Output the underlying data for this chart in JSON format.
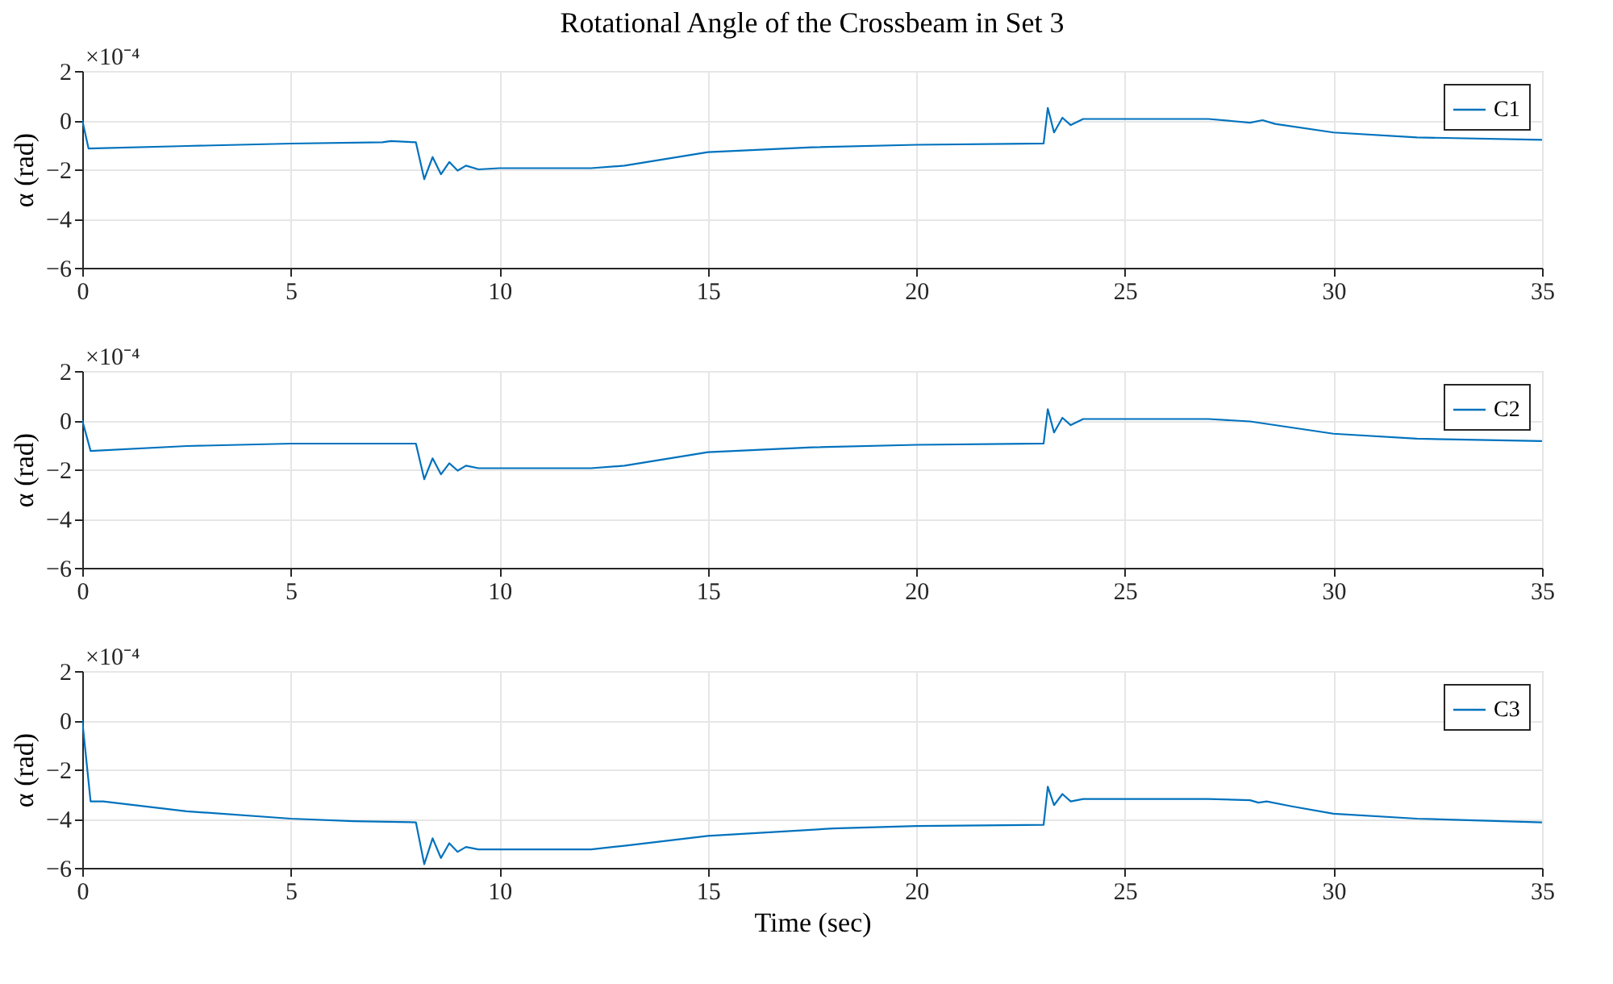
{
  "chart_data": [
    {
      "type": "line",
      "title": "Rotational Angle of the Crossbeam in Set 3",
      "ylabel": "α (rad)",
      "annotations": [
        "×10⁻⁴"
      ],
      "xlim": [
        0,
        35
      ],
      "xticks": [
        0,
        5,
        10,
        15,
        20,
        25,
        30,
        35
      ],
      "ylim": [
        -6,
        2
      ],
      "yticks": [
        -6,
        -4,
        -2,
        0,
        2
      ],
      "grid": true,
      "legend": "top right",
      "x": [
        0,
        0.15,
        2.5,
        5,
        7.2,
        7.4,
        8.0,
        8.2,
        8.4,
        8.6,
        8.8,
        9.0,
        9.2,
        9.5,
        10,
        12.2,
        13,
        15,
        17.5,
        20,
        23.05,
        23.15,
        23.3,
        23.5,
        23.7,
        24,
        25,
        27,
        28,
        28.3,
        28.6,
        30,
        32,
        35
      ],
      "series": [
        {
          "name": "C1",
          "color": "#0072bd",
          "values": [
            0,
            -1.15,
            -1.05,
            -0.95,
            -0.9,
            -0.85,
            -0.9,
            -2.4,
            -1.5,
            -2.2,
            -1.7,
            -2.05,
            -1.85,
            -2.0,
            -1.95,
            -1.95,
            -1.85,
            -1.3,
            -1.1,
            -1.0,
            -0.95,
            0.5,
            -0.5,
            0.1,
            -0.2,
            0.05,
            0.05,
            0.05,
            -0.1,
            0.0,
            -0.15,
            -0.5,
            -0.7,
            -0.8
          ]
        }
      ]
    },
    {
      "type": "line",
      "ylabel": "α (rad)",
      "annotations": [
        "×10⁻⁴"
      ],
      "xlim": [
        0,
        35
      ],
      "xticks": [
        0,
        5,
        10,
        15,
        20,
        25,
        30,
        35
      ],
      "ylim": [
        -6,
        2
      ],
      "yticks": [
        -6,
        -4,
        -2,
        0,
        2
      ],
      "grid": true,
      "legend": "top right",
      "x": [
        0,
        0.2,
        2.5,
        5,
        8.0,
        8.2,
        8.4,
        8.6,
        8.8,
        9.0,
        9.2,
        9.5,
        10,
        12.2,
        13,
        15,
        17.5,
        20,
        23.05,
        23.15,
        23.3,
        23.5,
        23.7,
        24,
        25,
        27,
        28,
        30,
        32,
        35
      ],
      "series": [
        {
          "name": "C2",
          "color": "#0072bd",
          "values": [
            0,
            -1.25,
            -1.05,
            -0.95,
            -0.95,
            -2.4,
            -1.55,
            -2.2,
            -1.75,
            -2.05,
            -1.85,
            -1.95,
            -1.95,
            -1.95,
            -1.85,
            -1.3,
            -1.1,
            -1.0,
            -0.95,
            0.45,
            -0.5,
            0.1,
            -0.2,
            0.05,
            0.05,
            0.05,
            -0.05,
            -0.55,
            -0.75,
            -0.85
          ]
        }
      ]
    },
    {
      "type": "line",
      "xlabel": "Time (sec)",
      "ylabel": "α (rad)",
      "annotations": [
        "×10⁻⁴"
      ],
      "xlim": [
        0,
        35
      ],
      "xticks": [
        0,
        5,
        10,
        15,
        20,
        25,
        30,
        35
      ],
      "ylim": [
        -6,
        2
      ],
      "yticks": [
        -6,
        -4,
        -2,
        0,
        2
      ],
      "grid": true,
      "legend": "top right",
      "x": [
        0,
        0.2,
        0.5,
        2.5,
        5,
        6.5,
        8.0,
        8.2,
        8.4,
        8.6,
        8.8,
        9.0,
        9.2,
        9.5,
        12.2,
        13,
        15,
        18,
        20,
        23.05,
        23.15,
        23.3,
        23.5,
        23.7,
        24,
        27,
        28.0,
        28.2,
        28.4,
        29,
        30,
        32,
        35
      ],
      "series": [
        {
          "name": "C3",
          "color": "#0072bd",
          "values": [
            0,
            -3.3,
            -3.3,
            -3.7,
            -4.0,
            -4.1,
            -4.15,
            -5.85,
            -4.8,
            -5.6,
            -5.0,
            -5.35,
            -5.15,
            -5.25,
            -5.25,
            -5.1,
            -4.7,
            -4.4,
            -4.3,
            -4.25,
            -2.7,
            -3.45,
            -3.0,
            -3.3,
            -3.2,
            -3.2,
            -3.25,
            -3.35,
            -3.3,
            -3.5,
            -3.8,
            -4.0,
            -4.15
          ]
        }
      ]
    }
  ]
}
